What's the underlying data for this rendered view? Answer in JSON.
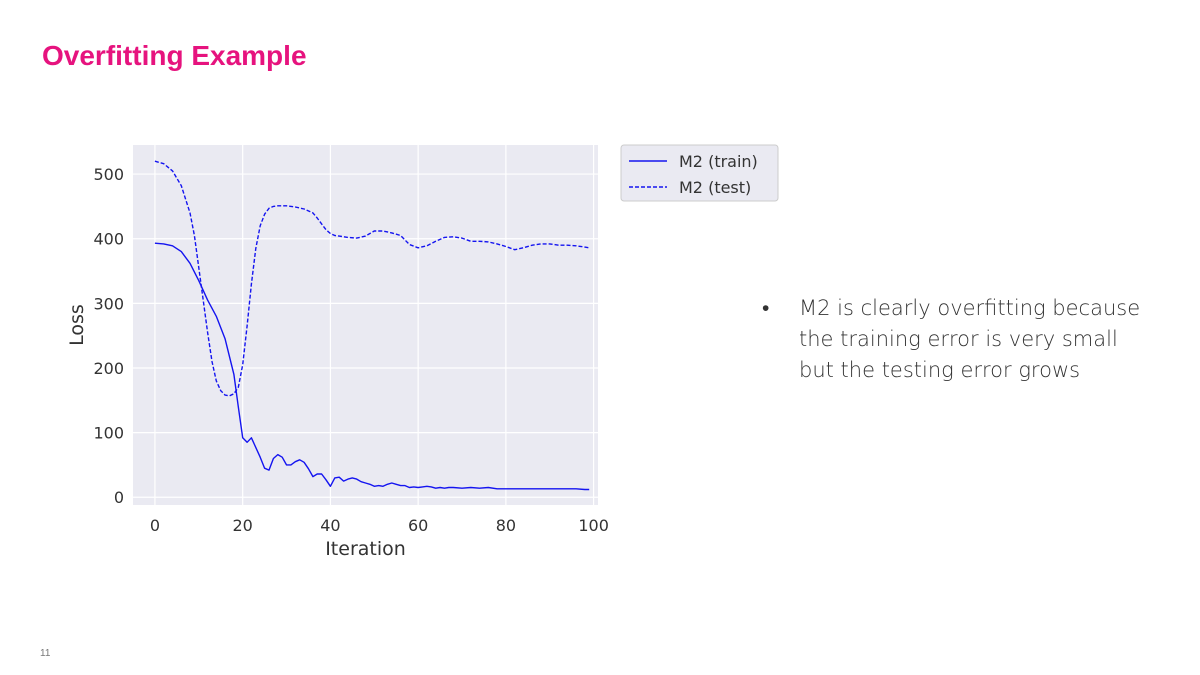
{
  "slide": {
    "title": "Overfitting Example",
    "page_number": "11",
    "bullet_marker": "•",
    "bullet_text": "M2 is clearly overfitting because the training error is very small but the testing error grows",
    "title_color": "#e6137e"
  },
  "chart_data": {
    "type": "line",
    "xlabel": "Iteration",
    "ylabel": "Loss",
    "xlim": [
      -5,
      101
    ],
    "ylim": [
      -12,
      545
    ],
    "xticks": [
      0,
      20,
      40,
      60,
      80,
      100
    ],
    "yticks": [
      0,
      100,
      200,
      300,
      400,
      500
    ],
    "grid": true,
    "background": "#eaeaf2",
    "legend_position": "outside-top-right",
    "series": [
      {
        "name": "M2 (train)",
        "color": "#1414f0",
        "style": "solid",
        "x": [
          0,
          2,
          4,
          6,
          8,
          10,
          12,
          14,
          16,
          18,
          19,
          20,
          21,
          22,
          24,
          25,
          26,
          27,
          28,
          29,
          30,
          31,
          32,
          33,
          34,
          35,
          36,
          37,
          38,
          39,
          40,
          41,
          42,
          43,
          44,
          45,
          46,
          47,
          48,
          49,
          50,
          51,
          52,
          53,
          54,
          55,
          56,
          57,
          58,
          59,
          60,
          61,
          62,
          63,
          64,
          65,
          66,
          67,
          68,
          70,
          72,
          74,
          76,
          78,
          80,
          82,
          84,
          86,
          88,
          90,
          92,
          94,
          96,
          98,
          99
        ],
        "values": [
          393,
          392,
          389,
          380,
          362,
          335,
          305,
          280,
          245,
          190,
          140,
          92,
          85,
          92,
          62,
          45,
          42,
          60,
          66,
          62,
          50,
          50,
          55,
          58,
          54,
          44,
          32,
          36,
          36,
          27,
          17,
          30,
          31,
          25,
          28,
          30,
          28,
          24,
          22,
          20,
          17,
          18,
          17,
          20,
          22,
          20,
          18,
          18,
          15,
          16,
          15,
          16,
          17,
          16,
          14,
          15,
          14,
          15,
          15,
          14,
          15,
          14,
          15,
          13,
          13,
          13,
          13,
          13,
          13,
          13,
          13,
          13,
          13,
          12,
          12
        ]
      },
      {
        "name": "M2 (test)",
        "color": "#1414f0",
        "style": "dashed",
        "x": [
          0,
          2,
          4,
          6,
          8,
          9,
          10,
          11,
          12,
          13,
          14,
          15,
          16,
          17,
          18,
          19,
          20,
          21,
          22,
          23,
          24,
          25,
          26,
          27,
          28,
          30,
          32,
          34,
          36,
          37,
          38,
          39,
          40,
          41,
          42,
          44,
          46,
          48,
          50,
          52,
          54,
          56,
          57,
          58,
          60,
          62,
          64,
          66,
          68,
          70,
          72,
          74,
          76,
          78,
          80,
          82,
          84,
          86,
          88,
          90,
          92,
          94,
          96,
          98,
          99
        ],
        "values": [
          520,
          516,
          505,
          482,
          440,
          405,
          355,
          305,
          255,
          210,
          180,
          165,
          158,
          157,
          160,
          170,
          205,
          265,
          330,
          385,
          420,
          438,
          447,
          450,
          451,
          451,
          449,
          446,
          440,
          432,
          423,
          414,
          408,
          405,
          404,
          402,
          401,
          404,
          412,
          412,
          409,
          405,
          398,
          391,
          386,
          389,
          396,
          402,
          403,
          401,
          396,
          396,
          395,
          392,
          388,
          383,
          386,
          390,
          392,
          392,
          390,
          390,
          389,
          387,
          386
        ]
      }
    ]
  }
}
